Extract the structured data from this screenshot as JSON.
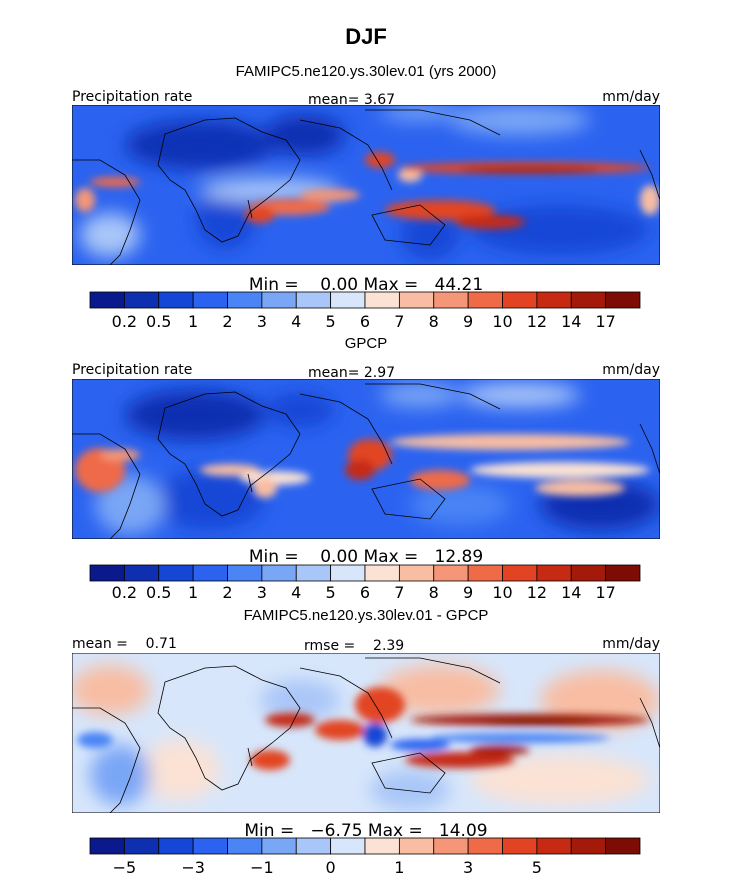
{
  "page_title": "DJF",
  "chart_data": [
    {
      "type": "heatmap",
      "subtitle": "FAMIPC5.ne120.ys.30lev.01 (yrs 2000)",
      "left_label": "Precipitation rate",
      "center_label": "mean=   3.67",
      "right_label": "mm/day",
      "stats": "Min =    0.00 Max =   44.21",
      "min": 0.0,
      "max": 44.21,
      "mean": 3.67,
      "colorbar_colors": [
        "#0a1a8c",
        "#0d2fb0",
        "#1547d6",
        "#2b63f0",
        "#4a84f5",
        "#7aa6f6",
        "#a9c6f8",
        "#d7e6fb",
        "#fbe2d4",
        "#f8bda3",
        "#f49677",
        "#ef6b48",
        "#e24423",
        "#c62a12",
        "#a31a0a",
        "#7d0c05"
      ],
      "colorbar_ticks": [
        "0.2",
        "0.5",
        "1",
        "2",
        "3",
        "4",
        "5",
        "6",
        "7",
        "8",
        "9",
        "10",
        "12",
        "14",
        "17"
      ]
    },
    {
      "type": "heatmap",
      "subtitle": "GPCP",
      "left_label": "Precipitation rate",
      "center_label": "mean=   2.97",
      "right_label": "mm/day",
      "stats": "Min =    0.00 Max =   12.89",
      "min": 0.0,
      "max": 12.89,
      "mean": 2.97,
      "colorbar_colors": [
        "#0a1a8c",
        "#0d2fb0",
        "#1547d6",
        "#2b63f0",
        "#4a84f5",
        "#7aa6f6",
        "#a9c6f8",
        "#d7e6fb",
        "#fbe2d4",
        "#f8bda3",
        "#f49677",
        "#ef6b48",
        "#e24423",
        "#c62a12",
        "#a31a0a",
        "#7d0c05"
      ],
      "colorbar_ticks": [
        "0.2",
        "0.5",
        "1",
        "2",
        "3",
        "4",
        "5",
        "6",
        "7",
        "8",
        "9",
        "10",
        "12",
        "14",
        "17"
      ]
    },
    {
      "type": "heatmap",
      "subtitle": "FAMIPC5.ne120.ys.30lev.01 - GPCP",
      "left_label": "mean =    0.71",
      "center_label": "rmse =    2.39",
      "right_label": "mm/day",
      "stats": "Min =   −6.75 Max =   14.09",
      "min": -6.75,
      "max": 14.09,
      "mean": 0.71,
      "rmse": 2.39,
      "colorbar_colors": [
        "#0a1a8c",
        "#0d2fb0",
        "#1547d6",
        "#2b63f0",
        "#4a84f5",
        "#7aa6f6",
        "#a9c6f8",
        "#d7e6fb",
        "#fbe2d4",
        "#f8bda3",
        "#f49677",
        "#ef6b48",
        "#e24423",
        "#c62a12",
        "#a31a0a",
        "#7d0c05"
      ],
      "colorbar_ticks": [
        "−5",
        "−3",
        "−1",
        "0",
        "1",
        "3",
        "5"
      ],
      "colorbar_tick_boundaries": [
        1,
        3,
        5,
        7,
        9,
        11,
        13
      ]
    }
  ]
}
